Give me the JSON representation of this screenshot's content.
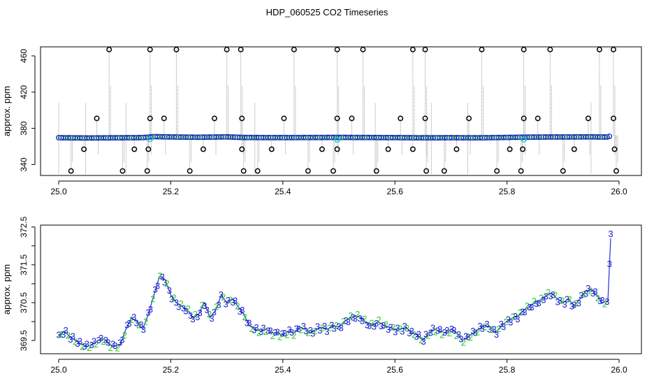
{
  "title": "HDP_060525  CO2 Timeseries",
  "colors": {
    "spike_marker": "#000000",
    "spike_line": "#9a9a9a",
    "series_blue": "#1a1ad0",
    "series_green": "#22cc22",
    "highlight_cyan": "#22c8e0",
    "line_blue": "#2a2ad8"
  },
  "chart_data": [
    {
      "type": "scatter",
      "name": "top-panel",
      "ylabel": "approx. ppm",
      "xlabel": "",
      "xlim": [
        25.0,
        26.0
      ],
      "ylim": [
        328,
        470
      ],
      "x_ticks": [
        "25.0",
        "25.2",
        "25.4",
        "25.6",
        "25.8",
        "26.0"
      ],
      "y_ticks": [
        "340",
        "380",
        "420",
        "460"
      ],
      "baseline": [
        [
          25.0,
          369.7
        ],
        [
          25.05,
          369.4
        ],
        [
          25.1,
          369.6
        ],
        [
          25.15,
          369.8
        ],
        [
          25.17,
          370.9
        ],
        [
          25.2,
          370.5
        ],
        [
          25.25,
          370.2
        ],
        [
          25.3,
          370.6
        ],
        [
          25.33,
          369.9
        ],
        [
          25.4,
          369.8
        ],
        [
          25.45,
          369.9
        ],
        [
          25.5,
          370.0
        ],
        [
          25.55,
          369.9
        ],
        [
          25.6,
          369.8
        ],
        [
          25.65,
          369.6
        ],
        [
          25.7,
          369.7
        ],
        [
          25.75,
          369.6
        ],
        [
          25.8,
          370.0
        ],
        [
          25.85,
          370.4
        ],
        [
          25.9,
          370.5
        ],
        [
          25.95,
          370.6
        ],
        [
          25.98,
          370.4
        ],
        [
          25.985,
          371.8
        ]
      ],
      "spikes_high": [
        25.09,
        25.163,
        25.21,
        25.3,
        25.325,
        25.42,
        25.497,
        25.543,
        25.632,
        25.654,
        25.755,
        25.83,
        25.877,
        25.965,
        25.99
      ],
      "spikes_mid": [
        25.068,
        25.163,
        25.188,
        25.278,
        25.327,
        25.402,
        25.497,
        25.523,
        25.61,
        25.654,
        25.732,
        25.83,
        25.855,
        25.945,
        25.99
      ],
      "spikes_low1": [
        25.045,
        25.135,
        25.16,
        25.258,
        25.327,
        25.38,
        25.47,
        25.497,
        25.588,
        25.632,
        25.71,
        25.805,
        25.828,
        25.92,
        25.992
      ],
      "spikes_low2": [
        25.022,
        25.114,
        25.158,
        25.234,
        25.33,
        25.355,
        25.445,
        25.49,
        25.567,
        25.656,
        25.688,
        25.782,
        25.825,
        25.9,
        25.995
      ],
      "spike_levels": {
        "high": 467,
        "mid": 391,
        "low1": 357,
        "low2": 333
      },
      "cyan_points": [
        25.163,
        25.497,
        25.83
      ]
    },
    {
      "type": "line",
      "name": "bottom-panel",
      "ylabel": "approx. ppm",
      "xlabel": "",
      "xlim": [
        25.0,
        26.0
      ],
      "ylim": [
        369.15,
        372.55
      ],
      "x_ticks": [
        "25.0",
        "25.2",
        "25.4",
        "25.6",
        "25.8",
        "26.0"
      ],
      "y_ticks": [
        "369.5",
        "370.5",
        "371.5",
        "372.5"
      ],
      "y_ticks_minor": [
        "370",
        "371",
        "372"
      ],
      "point_labels": [
        "3",
        "2"
      ],
      "series": [
        [
          25.0,
          369.6
        ],
        [
          25.01,
          369.75
        ],
        [
          25.02,
          369.6
        ],
        [
          25.03,
          369.5
        ],
        [
          25.04,
          369.4
        ],
        [
          25.05,
          369.35
        ],
        [
          25.06,
          369.4
        ],
        [
          25.07,
          369.5
        ],
        [
          25.08,
          369.55
        ],
        [
          25.09,
          369.4
        ],
        [
          25.1,
          369.35
        ],
        [
          25.11,
          369.4
        ],
        [
          25.12,
          369.8
        ],
        [
          25.13,
          370.1
        ],
        [
          25.14,
          370.0
        ],
        [
          25.15,
          369.8
        ],
        [
          25.16,
          370.2
        ],
        [
          25.17,
          370.7
        ],
        [
          25.18,
          371.2
        ],
        [
          25.19,
          371.1
        ],
        [
          25.2,
          370.7
        ],
        [
          25.21,
          370.5
        ],
        [
          25.22,
          370.4
        ],
        [
          25.23,
          370.3
        ],
        [
          25.24,
          370.1
        ],
        [
          25.25,
          370.2
        ],
        [
          25.26,
          370.5
        ],
        [
          25.27,
          370.1
        ],
        [
          25.28,
          370.3
        ],
        [
          25.29,
          370.7
        ],
        [
          25.3,
          370.5
        ],
        [
          25.31,
          370.6
        ],
        [
          25.32,
          370.4
        ],
        [
          25.33,
          370.2
        ],
        [
          25.34,
          369.9
        ],
        [
          25.35,
          369.8
        ],
        [
          25.36,
          369.75
        ],
        [
          25.37,
          369.8
        ],
        [
          25.38,
          369.7
        ],
        [
          25.39,
          369.7
        ],
        [
          25.4,
          369.65
        ],
        [
          25.41,
          369.75
        ],
        [
          25.42,
          369.7
        ],
        [
          25.43,
          369.85
        ],
        [
          25.44,
          369.8
        ],
        [
          25.45,
          369.7
        ],
        [
          25.46,
          369.8
        ],
        [
          25.47,
          369.85
        ],
        [
          25.48,
          369.8
        ],
        [
          25.49,
          369.9
        ],
        [
          25.5,
          369.85
        ],
        [
          25.51,
          370.0
        ],
        [
          25.52,
          370.1
        ],
        [
          25.53,
          370.15
        ],
        [
          25.54,
          370.1
        ],
        [
          25.55,
          369.95
        ],
        [
          25.56,
          369.9
        ],
        [
          25.57,
          370.0
        ],
        [
          25.58,
          369.9
        ],
        [
          25.59,
          369.85
        ],
        [
          25.6,
          369.8
        ],
        [
          25.61,
          369.8
        ],
        [
          25.62,
          369.85
        ],
        [
          25.63,
          369.7
        ],
        [
          25.64,
          369.65
        ],
        [
          25.65,
          369.5
        ],
        [
          25.66,
          369.7
        ],
        [
          25.67,
          369.8
        ],
        [
          25.68,
          369.75
        ],
        [
          25.69,
          369.7
        ],
        [
          25.7,
          369.8
        ],
        [
          25.71,
          369.7
        ],
        [
          25.72,
          369.5
        ],
        [
          25.73,
          369.6
        ],
        [
          25.74,
          369.7
        ],
        [
          25.75,
          369.8
        ],
        [
          25.76,
          369.9
        ],
        [
          25.77,
          369.85
        ],
        [
          25.78,
          369.7
        ],
        [
          25.79,
          369.9
        ],
        [
          25.8,
          370.0
        ],
        [
          25.81,
          370.1
        ],
        [
          25.82,
          370.15
        ],
        [
          25.83,
          370.3
        ],
        [
          25.84,
          370.4
        ],
        [
          25.85,
          370.5
        ],
        [
          25.86,
          370.55
        ],
        [
          25.87,
          370.7
        ],
        [
          25.88,
          370.75
        ],
        [
          25.89,
          370.6
        ],
        [
          25.9,
          370.5
        ],
        [
          25.91,
          370.6
        ],
        [
          25.92,
          370.4
        ],
        [
          25.93,
          370.6
        ],
        [
          25.94,
          370.8
        ],
        [
          25.95,
          370.85
        ],
        [
          25.96,
          370.7
        ],
        [
          25.97,
          370.5
        ],
        [
          25.98,
          370.55
        ],
        [
          25.985,
          372.2
        ]
      ]
    }
  ]
}
